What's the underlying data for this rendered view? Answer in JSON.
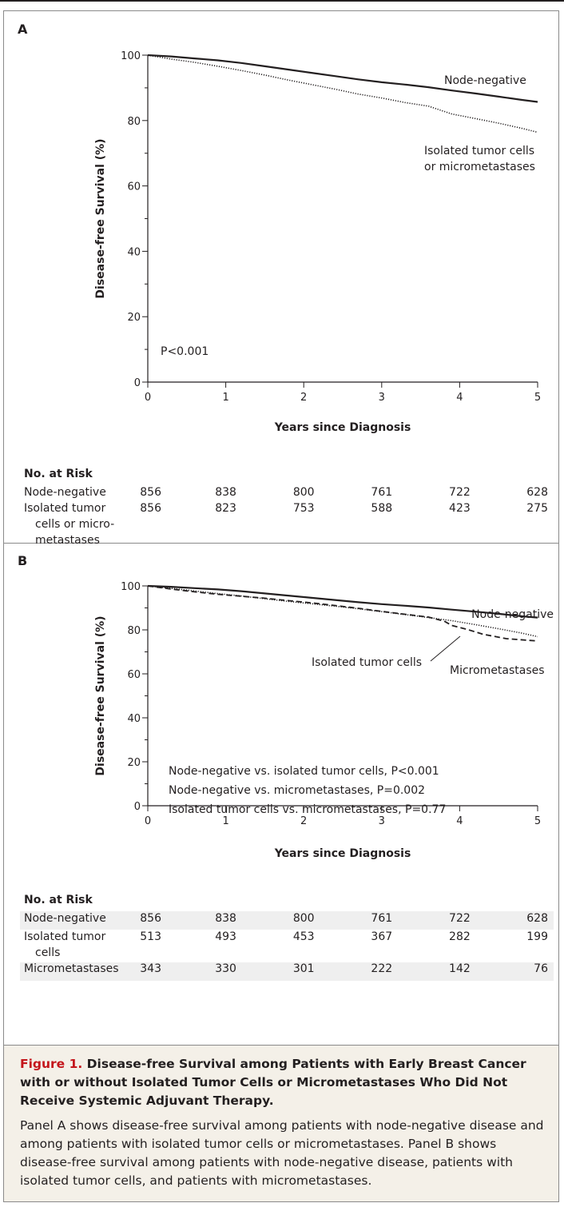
{
  "colors": {
    "line": "#231f20",
    "accent": "#c4161c",
    "caption_bg": "#f4f0e8",
    "stripe": "#efefef",
    "frame": "#8a8a8a"
  },
  "chart_data": [
    {
      "panel": "A",
      "type": "line",
      "xlabel": "Years since Diagnosis",
      "ylabel": "Disease-free Survival (%)",
      "xlim": [
        0,
        5
      ],
      "ylim": [
        0,
        100
      ],
      "xticks": [
        0,
        1,
        2,
        3,
        4,
        5
      ],
      "yticks": [
        0,
        20,
        40,
        60,
        80,
        100
      ],
      "annotation_lines": [
        "P<0.001"
      ],
      "series": [
        {
          "label_lines": [
            "Node-negative"
          ],
          "style": "solid",
          "x": [
            0,
            0.3,
            0.6,
            0.9,
            1.2,
            1.5,
            1.8,
            2.1,
            2.4,
            2.7,
            3.0,
            3.3,
            3.6,
            3.9,
            4.2,
            4.5,
            4.8,
            5.0
          ],
          "y": [
            100,
            99.6,
            99.0,
            98.4,
            97.6,
            96.6,
            95.6,
            94.6,
            93.6,
            92.6,
            91.7,
            91.0,
            90.2,
            89.2,
            88.3,
            87.3,
            86.3,
            85.7
          ]
        },
        {
          "label_lines": [
            "Isolated tumor cells",
            "or micrometastases"
          ],
          "style": "dotted",
          "x": [
            0,
            0.3,
            0.6,
            0.9,
            1.2,
            1.5,
            1.8,
            2.1,
            2.4,
            2.7,
            3.0,
            3.3,
            3.6,
            3.75,
            3.9,
            4.2,
            4.5,
            4.8,
            5.0
          ],
          "y": [
            100,
            98.8,
            97.8,
            96.6,
            95.3,
            93.9,
            92.4,
            91.0,
            89.6,
            88.1,
            86.9,
            85.5,
            84.4,
            83.2,
            82.0,
            80.6,
            79.2,
            77.6,
            76.4
          ]
        }
      ],
      "risk_table": {
        "title": "No. at Risk",
        "rows": [
          {
            "label_lines": [
              "Node-negative"
            ],
            "values": [
              "856",
              "838",
              "800",
              "761",
              "722",
              "628"
            ]
          },
          {
            "label_lines": [
              "Isolated tumor",
              "cells or micro-",
              "metastases"
            ],
            "values": [
              "856",
              "823",
              "753",
              "588",
              "423",
              "275"
            ]
          }
        ]
      }
    },
    {
      "panel": "B",
      "type": "line",
      "xlabel": "Years since Diagnosis",
      "ylabel": "Disease-free Survival (%)",
      "xlim": [
        0,
        5
      ],
      "ylim": [
        0,
        100
      ],
      "xticks": [
        0,
        1,
        2,
        3,
        4,
        5
      ],
      "yticks": [
        0,
        20,
        40,
        60,
        80,
        100
      ],
      "annotation_lines": [
        "Node-negative vs. isolated tumor cells, P<0.001",
        "Node-negative vs. micrometastases, P=0.002",
        "Isolated tumor cells vs. micrometastases, P=0.77"
      ],
      "series": [
        {
          "label_lines": [
            "Node-negative"
          ],
          "style": "solid",
          "x": [
            0,
            0.3,
            0.6,
            0.9,
            1.2,
            1.5,
            1.8,
            2.1,
            2.4,
            2.7,
            3.0,
            3.3,
            3.6,
            3.9,
            4.2,
            4.5,
            4.8,
            5.0
          ],
          "y": [
            100,
            99.6,
            99.0,
            98.4,
            97.6,
            96.6,
            95.6,
            94.6,
            93.6,
            92.6,
            91.7,
            91.0,
            90.2,
            89.2,
            88.3,
            87.3,
            86.2,
            85.6
          ]
        },
        {
          "label_lines": [
            "Isolated tumor cells"
          ],
          "style": "dotted",
          "x": [
            0,
            0.3,
            0.6,
            0.9,
            1.2,
            1.5,
            1.8,
            2.1,
            2.4,
            2.7,
            3.0,
            3.3,
            3.6,
            3.9,
            4.2,
            4.5,
            4.8,
            5.0
          ],
          "y": [
            100,
            98.9,
            97.7,
            96.5,
            95.4,
            94.2,
            93.0,
            91.9,
            90.8,
            89.6,
            88.3,
            87.0,
            85.6,
            84.2,
            82.4,
            80.5,
            78.5,
            76.9
          ]
        },
        {
          "label_lines": [
            "Micrometastases"
          ],
          "style": "dashed",
          "x": [
            0,
            0.3,
            0.6,
            0.9,
            1.2,
            1.5,
            1.8,
            2.1,
            2.4,
            2.7,
            3.0,
            3.3,
            3.6,
            3.8,
            3.9,
            4.1,
            4.3,
            4.6,
            4.9,
            5.0
          ],
          "y": [
            100,
            98.6,
            97.3,
            96.2,
            95.3,
            94.4,
            93.3,
            92.3,
            91.1,
            89.8,
            88.4,
            87.1,
            85.8,
            84.0,
            82.0,
            80.2,
            78.0,
            76.0,
            75.2,
            75.0
          ]
        }
      ],
      "risk_table": {
        "title": "No. at Risk",
        "rows": [
          {
            "label_lines": [
              "Node-negative"
            ],
            "values": [
              "856",
              "838",
              "800",
              "761",
              "722",
              "628"
            ]
          },
          {
            "label_lines": [
              "Isolated tumor",
              "cells"
            ],
            "values": [
              "513",
              "493",
              "453",
              "367",
              "282",
              "199"
            ]
          },
          {
            "label_lines": [
              "Micrometastases"
            ],
            "values": [
              "343",
              "330",
              "301",
              "222",
              "142",
              "76"
            ]
          }
        ]
      }
    }
  ],
  "caption": {
    "label": "Figure 1.",
    "title": " Disease-free Survival among Patients with Early Breast Cancer with or without Isolated Tumor Cells or Micrometastases Who Did Not Receive Systemic Adjuvant Therapy.",
    "text": "Panel A shows disease-free survival among patients with node-negative disease and among patients with isolated tumor cells or micrometastases. Panel B shows disease-free survival among patients with node-negative disease, patients with isolated tumor cells, and patients with micrometastases."
  }
}
